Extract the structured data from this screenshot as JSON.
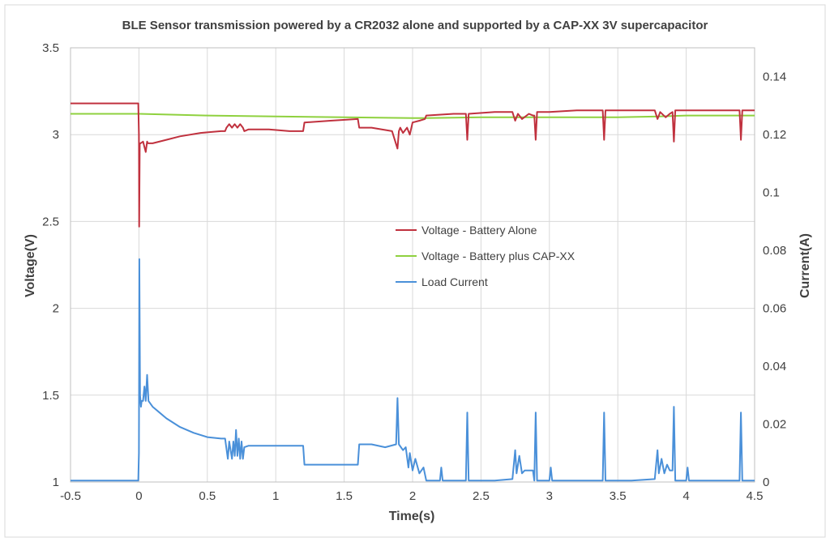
{
  "chart_data": {
    "type": "line",
    "title": "BLE Sensor transmission powered by a CR2032  alone and supported by a CAP-XX 3V supercapacitor",
    "xlabel": "Time(s)",
    "ylabel": "Voltage(V)",
    "y2label": "Current(A)",
    "xlim": [
      -0.5,
      4.5
    ],
    "ylim": [
      1,
      3.5
    ],
    "y2lim": [
      0,
      0.15
    ],
    "x_ticks": [
      "-0.5",
      "0",
      "0.5",
      "1",
      "1.5",
      "2",
      "2.5",
      "3",
      "3.5",
      "4",
      "4.5"
    ],
    "y_ticks": [
      "1",
      "1.5",
      "2",
      "2.5",
      "3",
      "3.5"
    ],
    "y2_ticks": [
      "0",
      "0.02",
      "0.04",
      "0.06",
      "0.08",
      "0.1",
      "0.12",
      "0.14"
    ],
    "grid": true,
    "legend_position": "center",
    "colors": {
      "battery_alone": "#c0313e",
      "battery_capxx": "#8fd13f",
      "load_current": "#4a90d9",
      "grid": "#d9d9d9",
      "axis_text": "#404040"
    },
    "series": [
      {
        "name": "Voltage - Battery Alone",
        "axis": "left",
        "x": [
          -0.5,
          -0.005,
          0.0,
          0.002,
          0.006,
          0.012,
          0.03,
          0.05,
          0.06,
          0.065,
          0.1,
          0.2,
          0.3,
          0.45,
          0.6,
          0.63,
          0.64,
          0.66,
          0.68,
          0.7,
          0.72,
          0.74,
          0.76,
          0.77,
          0.8,
          0.95,
          1.1,
          1.2,
          1.21,
          1.4,
          1.6,
          1.61,
          1.7,
          1.85,
          1.89,
          1.9,
          1.91,
          1.93,
          1.96,
          1.98,
          2.0,
          2.05,
          2.09,
          2.1,
          2.3,
          2.39,
          2.4,
          2.41,
          2.6,
          2.73,
          2.75,
          2.77,
          2.8,
          2.85,
          2.88,
          2.89,
          2.9,
          2.91,
          3.0,
          3.2,
          3.39,
          3.4,
          3.41,
          3.6,
          3.77,
          3.79,
          3.81,
          3.85,
          3.88,
          3.9,
          3.91,
          3.92,
          4.0,
          4.2,
          4.39,
          4.4,
          4.41,
          4.5
        ],
        "values": [
          3.18,
          3.18,
          3.0,
          2.47,
          2.95,
          2.95,
          2.96,
          2.9,
          2.96,
          2.95,
          2.95,
          2.97,
          2.99,
          3.01,
          3.02,
          3.02,
          3.04,
          3.06,
          3.04,
          3.06,
          3.04,
          3.06,
          3.04,
          3.02,
          3.03,
          3.03,
          3.02,
          3.02,
          3.07,
          3.08,
          3.09,
          3.04,
          3.04,
          3.02,
          2.92,
          3.02,
          3.04,
          3.01,
          3.04,
          3.0,
          3.07,
          3.08,
          3.09,
          3.11,
          3.12,
          3.12,
          2.97,
          3.12,
          3.13,
          3.13,
          3.08,
          3.12,
          3.09,
          3.12,
          3.11,
          3.11,
          2.97,
          3.13,
          3.13,
          3.14,
          3.14,
          2.97,
          3.14,
          3.14,
          3.14,
          3.09,
          3.13,
          3.1,
          3.12,
          3.13,
          2.96,
          3.14,
          3.14,
          3.14,
          3.14,
          2.97,
          3.14,
          3.14
        ]
      },
      {
        "name": "Voltage - Battery plus CAP-XX",
        "axis": "left",
        "x": [
          -0.5,
          0.0,
          0.5,
          1.0,
          1.5,
          2.0,
          2.1,
          2.5,
          3.0,
          3.5,
          3.8,
          4.0,
          4.5
        ],
        "values": [
          3.12,
          3.12,
          3.11,
          3.105,
          3.1,
          3.095,
          3.095,
          3.1,
          3.1,
          3.1,
          3.105,
          3.11,
          3.11
        ]
      },
      {
        "name": "Load Current",
        "axis": "right",
        "x": [
          -0.5,
          -0.005,
          0.0,
          0.003,
          0.008,
          0.015,
          0.02,
          0.03,
          0.04,
          0.05,
          0.06,
          0.07,
          0.1,
          0.15,
          0.2,
          0.3,
          0.4,
          0.5,
          0.6,
          0.63,
          0.65,
          0.66,
          0.68,
          0.69,
          0.7,
          0.71,
          0.72,
          0.73,
          0.74,
          0.75,
          0.76,
          0.77,
          0.8,
          1.0,
          1.2,
          1.21,
          1.4,
          1.6,
          1.61,
          1.7,
          1.8,
          1.88,
          1.89,
          1.9,
          1.93,
          1.95,
          1.97,
          1.98,
          2.0,
          2.02,
          2.05,
          2.08,
          2.1,
          2.2,
          2.21,
          2.22,
          2.39,
          2.4,
          2.41,
          2.6,
          2.73,
          2.75,
          2.76,
          2.78,
          2.8,
          2.82,
          2.85,
          2.88,
          2.89,
          2.9,
          2.91,
          3.0,
          3.01,
          3.02,
          3.39,
          3.4,
          3.41,
          3.6,
          3.77,
          3.79,
          3.8,
          3.82,
          3.84,
          3.86,
          3.88,
          3.9,
          3.91,
          3.92,
          4.0,
          4.01,
          4.02,
          4.39,
          4.4,
          4.41,
          4.5
        ],
        "values": [
          0.0005,
          0.0005,
          0.01,
          0.077,
          0.03,
          0.026,
          0.028,
          0.028,
          0.033,
          0.028,
          0.037,
          0.028,
          0.026,
          0.024,
          0.022,
          0.019,
          0.017,
          0.0155,
          0.015,
          0.015,
          0.008,
          0.014,
          0.008,
          0.014,
          0.009,
          0.018,
          0.009,
          0.015,
          0.008,
          0.014,
          0.008,
          0.012,
          0.0125,
          0.0125,
          0.0125,
          0.006,
          0.006,
          0.006,
          0.013,
          0.013,
          0.012,
          0.013,
          0.029,
          0.013,
          0.011,
          0.012,
          0.005,
          0.01,
          0.004,
          0.008,
          0.003,
          0.005,
          0.0005,
          0.0005,
          0.005,
          0.0005,
          0.0005,
          0.024,
          0.0005,
          0.0005,
          0.001,
          0.011,
          0.003,
          0.009,
          0.003,
          0.004,
          0.004,
          0.004,
          0.0005,
          0.024,
          0.0005,
          0.0005,
          0.005,
          0.0005,
          0.0005,
          0.024,
          0.0005,
          0.0005,
          0.001,
          0.011,
          0.003,
          0.008,
          0.003,
          0.006,
          0.004,
          0.004,
          0.026,
          0.0005,
          0.0005,
          0.005,
          0.0005,
          0.0005,
          0.024,
          0.0005,
          0.0005
        ]
      }
    ]
  }
}
